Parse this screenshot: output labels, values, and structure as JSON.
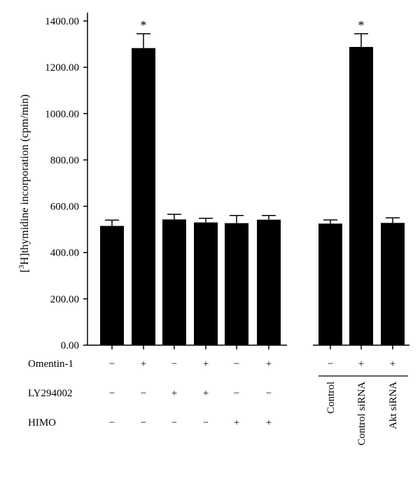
{
  "chart_data": {
    "type": "bar",
    "ylabel_pre": "[",
    "ylabel_sup": "3",
    "ylabel_post": "H]thymidine incorporation (cpm/min)",
    "ylim": [
      0,
      1400
    ],
    "yticks": [
      "0.00",
      "200.00",
      "400.00",
      "600.00",
      "800.00",
      "1000.00",
      "1200.00",
      "1400.00"
    ],
    "grid": false,
    "bar_color": "#000000",
    "bars": [
      {
        "value": 515,
        "error": 25,
        "star": ""
      },
      {
        "value": 1283,
        "error": 62,
        "star": "*"
      },
      {
        "value": 543,
        "error": 22,
        "star": ""
      },
      {
        "value": 530,
        "error": 18,
        "star": ""
      },
      {
        "value": 527,
        "error": 33,
        "star": ""
      },
      {
        "value": 542,
        "error": 18,
        "star": ""
      },
      {
        "value": 525,
        "error": 16,
        "star": ""
      },
      {
        "value": 1288,
        "error": 57,
        "star": "*"
      },
      {
        "value": 528,
        "error": 22,
        "star": ""
      }
    ],
    "factors": [
      {
        "name": "Omentin-1",
        "signs": [
          "−",
          "+",
          "−",
          "+",
          "−",
          "+",
          "−",
          "+",
          "+"
        ]
      },
      {
        "name": "LY294002",
        "signs": [
          "−",
          "−",
          "+",
          "+",
          "−",
          "−",
          "",
          "",
          ""
        ]
      },
      {
        "name": "HIMO",
        "signs": [
          "−",
          "−",
          "−",
          "−",
          "+",
          "+",
          "",
          "",
          ""
        ]
      }
    ],
    "group_labels": [
      "Control",
      "Control siRNA",
      "Akt siRNA"
    ]
  }
}
